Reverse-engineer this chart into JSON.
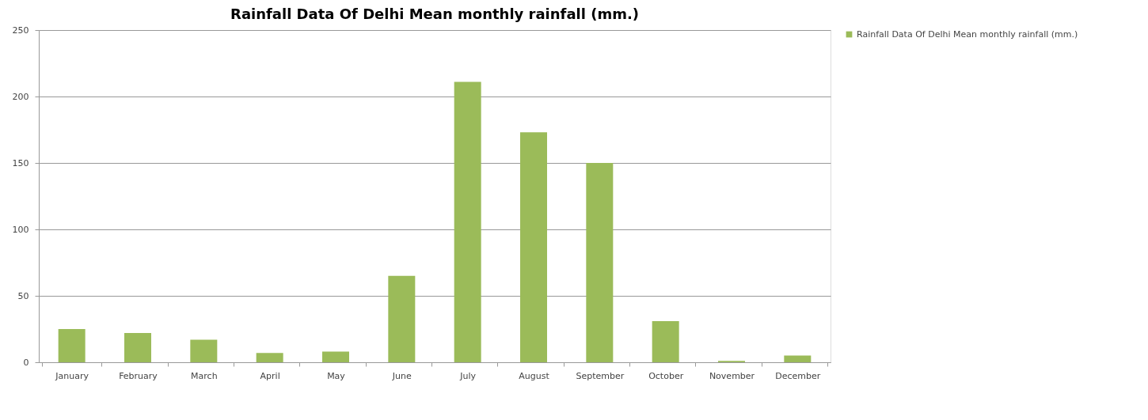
{
  "chart_data": {
    "type": "bar",
    "title": "Rainfall Data Of Delhi Mean monthly rainfall (mm.)",
    "categories": [
      "January",
      "February",
      "March",
      "April",
      "May",
      "June",
      "July",
      "August",
      "September",
      "October",
      "November",
      "December"
    ],
    "series": [
      {
        "name": "Rainfall Data Of Delhi Mean monthly rainfall (mm.)",
        "color": "#9bbb59",
        "values": [
          25,
          22,
          17,
          7,
          8,
          65,
          211,
          173,
          150,
          31,
          1,
          5
        ]
      }
    ],
    "ylim": [
      0,
      250
    ],
    "yticks": [
      0,
      50,
      100,
      150,
      200,
      250
    ],
    "grid": "y",
    "legend": "right"
  }
}
